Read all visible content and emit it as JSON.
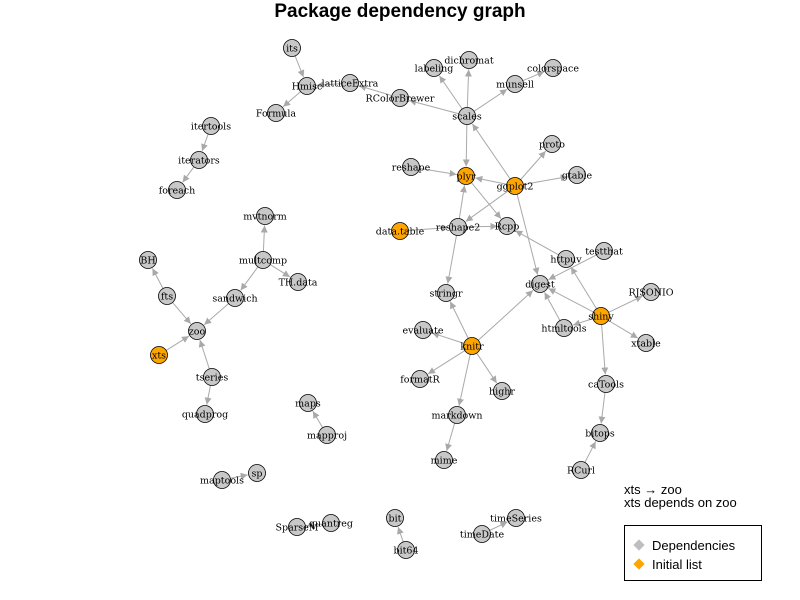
{
  "title": "Package dependency graph",
  "note": {
    "line1": "xts → zoo",
    "line2": "xts depends on zoo"
  },
  "legend": {
    "items": [
      {
        "label": "Dependencies",
        "color": "#bebebe"
      },
      {
        "label": "Initial list",
        "color": "#ffa500"
      }
    ]
  },
  "colors": {
    "dependency": "#c8c8c8",
    "initial": "#ffa500",
    "edge": "#a9a9a9",
    "node_border": "#000000"
  },
  "nodes": [
    {
      "id": "its",
      "label": "its",
      "initial": false
    },
    {
      "id": "Hmisc",
      "label": "Hmisc",
      "initial": false
    },
    {
      "id": "Formula",
      "label": "Formula",
      "initial": false
    },
    {
      "id": "latticeExtra",
      "label": "latticeExtra",
      "initial": false
    },
    {
      "id": "RColorBrewer",
      "label": "RColorBrewer",
      "initial": false
    },
    {
      "id": "iterators",
      "label": "iterators",
      "initial": false
    },
    {
      "id": "itertools",
      "label": "itertools",
      "initial": false
    },
    {
      "id": "foreach",
      "label": "foreach",
      "initial": false
    },
    {
      "id": "labeling",
      "label": "labeling",
      "initial": false
    },
    {
      "id": "dichromat",
      "label": "dichromat",
      "initial": false
    },
    {
      "id": "colorspace",
      "label": "colorspace",
      "initial": false
    },
    {
      "id": "munsell",
      "label": "munsell",
      "initial": false
    },
    {
      "id": "scales",
      "label": "scales",
      "initial": false
    },
    {
      "id": "proto",
      "label": "proto",
      "initial": false
    },
    {
      "id": "reshape",
      "label": "reshape",
      "initial": false
    },
    {
      "id": "plyr",
      "label": "plyr",
      "initial": true
    },
    {
      "id": "ggplot2",
      "label": "ggplot2",
      "initial": true
    },
    {
      "id": "gtable",
      "label": "gtable",
      "initial": false
    },
    {
      "id": "mvtnorm",
      "label": "mvtnorm",
      "initial": false
    },
    {
      "id": "data.table",
      "label": "data.table",
      "initial": true
    },
    {
      "id": "reshape2",
      "label": "reshape2",
      "initial": false
    },
    {
      "id": "Rcpp",
      "label": "Rcpp",
      "initial": false
    },
    {
      "id": "BH",
      "label": "BH",
      "initial": false
    },
    {
      "id": "multcomp",
      "label": "multcomp",
      "initial": false
    },
    {
      "id": "TH.data",
      "label": "TH.data",
      "initial": false
    },
    {
      "id": "testthat",
      "label": "testthat",
      "initial": false
    },
    {
      "id": "httpuv",
      "label": "httpuv",
      "initial": false
    },
    {
      "id": "fts",
      "label": "fts",
      "initial": false
    },
    {
      "id": "sandwich",
      "label": "sandwich",
      "initial": false
    },
    {
      "id": "stringr",
      "label": "stringr",
      "initial": false
    },
    {
      "id": "digest",
      "label": "digest",
      "initial": false
    },
    {
      "id": "RJSONIO",
      "label": "RJSONIO",
      "initial": false
    },
    {
      "id": "zoo",
      "label": "zoo",
      "initial": false
    },
    {
      "id": "evaluate",
      "label": "evaluate",
      "initial": false
    },
    {
      "id": "htmltools",
      "label": "htmltools",
      "initial": false
    },
    {
      "id": "shiny",
      "label": "shiny",
      "initial": true
    },
    {
      "id": "xtable",
      "label": "xtable",
      "initial": false
    },
    {
      "id": "xts",
      "label": "xts",
      "initial": true
    },
    {
      "id": "knitr",
      "label": "knitr",
      "initial": true
    },
    {
      "id": "tseries",
      "label": "tseries",
      "initial": false
    },
    {
      "id": "formatR",
      "label": "formatR",
      "initial": false
    },
    {
      "id": "highr",
      "label": "highr",
      "initial": false
    },
    {
      "id": "caTools",
      "label": "caTools",
      "initial": false
    },
    {
      "id": "maps",
      "label": "maps",
      "initial": false
    },
    {
      "id": "quadprog",
      "label": "quadprog",
      "initial": false
    },
    {
      "id": "markdown",
      "label": "markdown",
      "initial": false
    },
    {
      "id": "mapproj",
      "label": "mapproj",
      "initial": false
    },
    {
      "id": "bitops",
      "label": "bitops",
      "initial": false
    },
    {
      "id": "mime",
      "label": "mime",
      "initial": false
    },
    {
      "id": "RCurl",
      "label": "RCurl",
      "initial": false
    },
    {
      "id": "sp",
      "label": "sp",
      "initial": false
    },
    {
      "id": "maptools",
      "label": "maptools",
      "initial": false
    },
    {
      "id": "bit",
      "label": "bit",
      "initial": false
    },
    {
      "id": "timeSeries",
      "label": "timeSeries",
      "initial": false
    },
    {
      "id": "SparseM",
      "label": "SparseM",
      "initial": false
    },
    {
      "id": "quantreg",
      "label": "quantreg",
      "initial": false
    },
    {
      "id": "timeDate",
      "label": "timeDate",
      "initial": false
    },
    {
      "id": "bit64",
      "label": "bit64",
      "initial": false
    }
  ],
  "edges": [
    [
      "its",
      "Hmisc"
    ],
    [
      "Hmisc",
      "Formula"
    ],
    [
      "latticeExtra",
      "Hmisc"
    ],
    [
      "RColorBrewer",
      "latticeExtra"
    ],
    [
      "itertools",
      "iterators"
    ],
    [
      "iterators",
      "foreach"
    ],
    [
      "scales",
      "labeling"
    ],
    [
      "scales",
      "dichromat"
    ],
    [
      "scales",
      "munsell"
    ],
    [
      "munsell",
      "colorspace"
    ],
    [
      "scales",
      "RColorBrewer"
    ],
    [
      "scales",
      "plyr"
    ],
    [
      "ggplot2",
      "scales"
    ],
    [
      "ggplot2",
      "plyr"
    ],
    [
      "ggplot2",
      "proto"
    ],
    [
      "ggplot2",
      "gtable"
    ],
    [
      "ggplot2",
      "reshape2"
    ],
    [
      "ggplot2",
      "digest"
    ],
    [
      "reshape",
      "plyr"
    ],
    [
      "plyr",
      "Rcpp"
    ],
    [
      "reshape2",
      "plyr"
    ],
    [
      "reshape2",
      "Rcpp"
    ],
    [
      "reshape2",
      "stringr"
    ],
    [
      "data.table",
      "reshape2"
    ],
    [
      "multcomp",
      "mvtnorm"
    ],
    [
      "multcomp",
      "TH.data"
    ],
    [
      "multcomp",
      "sandwich"
    ],
    [
      "sandwich",
      "zoo"
    ],
    [
      "fts",
      "BH"
    ],
    [
      "fts",
      "zoo"
    ],
    [
      "xts",
      "zoo"
    ],
    [
      "tseries",
      "zoo"
    ],
    [
      "tseries",
      "quadprog"
    ],
    [
      "httpuv",
      "Rcpp"
    ],
    [
      "testthat",
      "digest"
    ],
    [
      "shiny",
      "httpuv"
    ],
    [
      "shiny",
      "digest"
    ],
    [
      "shiny",
      "RJSONIO"
    ],
    [
      "shiny",
      "htmltools"
    ],
    [
      "shiny",
      "xtable"
    ],
    [
      "shiny",
      "caTools"
    ],
    [
      "htmltools",
      "digest"
    ],
    [
      "knitr",
      "stringr"
    ],
    [
      "knitr",
      "evaluate"
    ],
    [
      "knitr",
      "formatR"
    ],
    [
      "knitr",
      "highr"
    ],
    [
      "knitr",
      "markdown"
    ],
    [
      "knitr",
      "digest"
    ],
    [
      "markdown",
      "mime"
    ],
    [
      "caTools",
      "bitops"
    ],
    [
      "RCurl",
      "bitops"
    ],
    [
      "mapproj",
      "maps"
    ],
    [
      "maptools",
      "sp"
    ],
    [
      "quantreg",
      "SparseM"
    ],
    [
      "bit64",
      "bit"
    ],
    [
      "timeDate",
      "timeSeries"
    ]
  ]
}
